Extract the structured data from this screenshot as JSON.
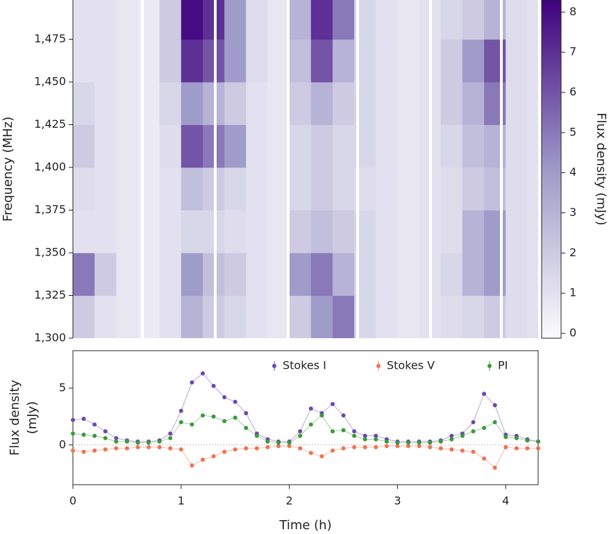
{
  "chart_data": [
    {
      "type": "heatmap",
      "ylabel": "Frequency (MHz)",
      "x_bins": [
        0,
        0.2,
        0.4,
        0.6,
        0.8,
        1.0,
        1.2,
        1.4,
        1.6,
        1.8,
        2.0,
        2.2,
        2.4,
        2.6,
        2.8,
        3.0,
        3.2,
        3.4,
        3.6,
        3.8,
        4.0,
        4.2,
        4.3
      ],
      "y_bins": [
        1300,
        1325,
        1350,
        1375,
        1400,
        1425,
        1450,
        1475,
        1498
      ],
      "z": [
        [
          2,
          1,
          0.8,
          0.6,
          1,
          3,
          2,
          1.5,
          1,
          0.8,
          2,
          4,
          5,
          1.5,
          1,
          0.8,
          1,
          1.2,
          1.5,
          2,
          1.2,
          1
        ],
        [
          5,
          2,
          0.8,
          0.6,
          1,
          4,
          2.5,
          2,
          1,
          0.8,
          4,
          5,
          3,
          1.5,
          1,
          0.8,
          1,
          1.5,
          3,
          4,
          1.2,
          1
        ],
        [
          1,
          1,
          0.8,
          0.6,
          1,
          1.5,
          1.5,
          1.2,
          1,
          0.8,
          2,
          2.5,
          2,
          1.5,
          1,
          0.8,
          1,
          1.2,
          3,
          4,
          1.2,
          1
        ],
        [
          1.2,
          1,
          0.8,
          0.6,
          1,
          2.5,
          2,
          1.5,
          1,
          0.8,
          1.5,
          2,
          1.5,
          1.2,
          1,
          0.8,
          1,
          1.2,
          2,
          2.5,
          1.2,
          1
        ],
        [
          2,
          1,
          0.8,
          0.6,
          1.2,
          6,
          5,
          4,
          1,
          0.8,
          1.5,
          2,
          1.5,
          1.5,
          1,
          0.8,
          1,
          1.5,
          2.5,
          3,
          1.2,
          1
        ],
        [
          1.5,
          1,
          0.8,
          0.6,
          1.5,
          4,
          3,
          2,
          1,
          0.8,
          2,
          3,
          2,
          1.5,
          1,
          0.8,
          1,
          2,
          3,
          5,
          1.2,
          1
        ],
        [
          1,
          1,
          0.8,
          0.6,
          2,
          7,
          6,
          4,
          1.2,
          0.8,
          2.5,
          6,
          3,
          1.5,
          1,
          0.8,
          1,
          2,
          4,
          6,
          1.2,
          1
        ],
        [
          1,
          1,
          0.8,
          0.6,
          2,
          8,
          7,
          4,
          1.2,
          0.8,
          3,
          7,
          5,
          1.5,
          1,
          0.8,
          1,
          1.5,
          2,
          3,
          1.2,
          1
        ]
      ],
      "xlim": [
        0,
        4.3
      ],
      "ylim": [
        1300,
        1498
      ],
      "yticks": [
        {
          "value": 1300,
          "label": "1,300"
        },
        {
          "value": 1325,
          "label": "1,325"
        },
        {
          "value": 1350,
          "label": "1,350"
        },
        {
          "value": 1375,
          "label": "1,375"
        },
        {
          "value": 1400,
          "label": "1,400"
        },
        {
          "value": 1425,
          "label": "1,425"
        },
        {
          "value": 1450,
          "label": "1,450"
        },
        {
          "value": 1475,
          "label": "1,475"
        }
      ],
      "colorbar": {
        "label": "Flux density (mJy)",
        "lim": [
          -0.12,
          8.3
        ],
        "ticks": [
          0,
          1,
          2,
          3,
          4,
          5,
          6,
          7,
          8
        ],
        "colors": [
          "#fcfbfd",
          "#9e9ac8",
          "#3f007d"
        ]
      }
    },
    {
      "type": "scatter",
      "xlabel": "Time (h)",
      "ylabel": [
        "Flux density",
        "(mJy)"
      ],
      "x": [
        0,
        0.1,
        0.2,
        0.3,
        0.4,
        0.5,
        0.6,
        0.7,
        0.8,
        0.9,
        1.0,
        1.1,
        1.2,
        1.3,
        1.4,
        1.5,
        1.6,
        1.7,
        1.8,
        1.9,
        2.0,
        2.1,
        2.2,
        2.3,
        2.4,
        2.5,
        2.6,
        2.7,
        2.8,
        2.9,
        3.0,
        3.1,
        3.2,
        3.3,
        3.4,
        3.5,
        3.6,
        3.7,
        3.8,
        3.9,
        4.0,
        4.1,
        4.2,
        4.3
      ],
      "series": [
        {
          "name": "Stokes I",
          "color": "#6b48b0",
          "values": [
            2.2,
            2.3,
            1.8,
            1.2,
            0.6,
            0.4,
            0.3,
            0.3,
            0.4,
            1.0,
            3.0,
            5.5,
            6.3,
            5.2,
            4.2,
            3.8,
            2.8,
            1.0,
            0.5,
            0.3,
            0.3,
            1.2,
            3.2,
            2.8,
            3.6,
            2.6,
            1.2,
            0.8,
            0.8,
            0.5,
            0.3,
            0.3,
            0.3,
            0.3,
            0.4,
            0.8,
            1.0,
            2.0,
            4.5,
            3.5,
            0.9,
            0.8,
            0.5,
            0.3
          ]
        },
        {
          "name": "Stokes V",
          "color": "#f07252",
          "values": [
            -0.5,
            -0.6,
            -0.5,
            -0.4,
            -0.3,
            -0.3,
            -0.2,
            -0.2,
            -0.2,
            -0.3,
            -0.4,
            -1.8,
            -1.3,
            -1.0,
            -0.6,
            -0.4,
            -0.3,
            -0.3,
            -0.2,
            -0.1,
            -0.1,
            -0.3,
            -0.7,
            -1.0,
            -0.5,
            -0.3,
            -0.2,
            -0.2,
            -0.2,
            -0.1,
            -0.1,
            -0.1,
            -0.1,
            -0.2,
            -0.3,
            -0.4,
            -0.5,
            -0.6,
            -1.2,
            -2.0,
            -0.2,
            -0.3,
            -0.3,
            -0.3
          ]
        },
        {
          "name": "PI",
          "color": "#3a9a3a",
          "values": [
            1.0,
            0.9,
            0.8,
            0.6,
            0.3,
            0.3,
            0.2,
            0.2,
            0.3,
            0.6,
            2.0,
            1.8,
            2.6,
            2.5,
            2.1,
            2.4,
            1.5,
            0.8,
            0.3,
            0.2,
            0.2,
            0.8,
            1.8,
            2.6,
            1.2,
            1.3,
            0.8,
            0.5,
            0.5,
            0.3,
            0.2,
            0.2,
            0.2,
            0.2,
            0.3,
            0.5,
            0.8,
            1.2,
            1.5,
            2.0,
            0.7,
            0.6,
            0.4,
            0.3
          ]
        }
      ],
      "xlim": [
        0,
        4.3
      ],
      "ylim": [
        -3.5,
        8.3
      ],
      "xticks": [
        0,
        1,
        2,
        3,
        4
      ],
      "yticks": [
        0,
        5
      ],
      "zero_line": true
    }
  ]
}
